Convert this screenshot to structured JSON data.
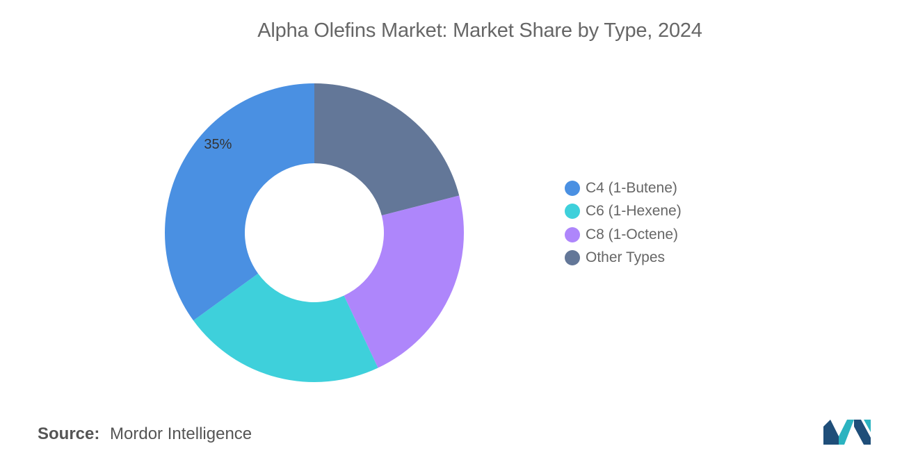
{
  "chart_data": {
    "type": "pie",
    "title": "Alpha Olefins Market: Market Share by Type, 2024",
    "donut": true,
    "categories": [
      "C4 (1-Butene)",
      "C6 (1-Hexene)",
      "C8 (1-Octene)",
      "Other Types"
    ],
    "values": [
      35,
      22,
      22,
      21
    ],
    "colors": [
      "#4A90E2",
      "#3ED0DB",
      "#AE86FB",
      "#637798"
    ],
    "data_labels": [
      {
        "category": "C4 (1-Butene)",
        "text": "35%"
      }
    ],
    "legend_position": "right",
    "legend": [
      {
        "label": "C4 (1-Butene)",
        "color": "#4A90E2"
      },
      {
        "label": "C6 (1-Hexene)",
        "color": "#3ED0DB"
      },
      {
        "label": "C8 (1-Octene)",
        "color": "#AE86FB"
      },
      {
        "label": "Other Types",
        "color": "#637798"
      }
    ]
  },
  "footer": {
    "source_label": "Source:",
    "source_value": "Mordor Intelligence"
  },
  "logo": {
    "icon": "mordor-intelligence-logo-icon",
    "colors": [
      "#1F4E79",
      "#2BB3C0"
    ]
  }
}
